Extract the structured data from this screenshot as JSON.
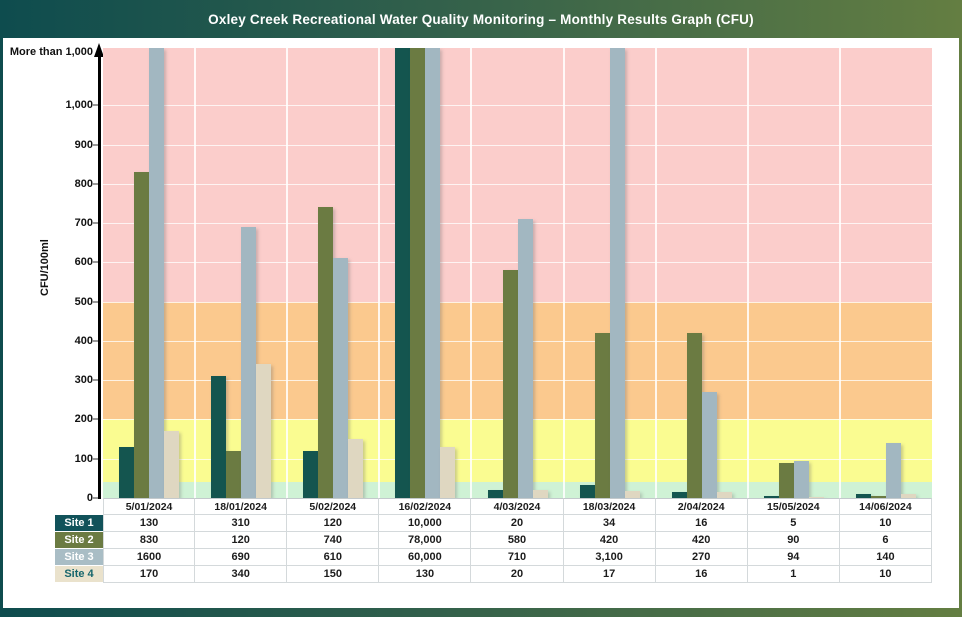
{
  "window": {
    "title": "Oxley Creek Recreational Water Quality Monitoring – Monthly Results Graph (CFU)",
    "header_gradient": [
      "#0e4c4e",
      "#647e42"
    ],
    "background": "#ffffff"
  },
  "chart_data": {
    "type": "bar",
    "title": "Oxley Creek Recreational Water Quality Monitoring – Monthly Results Graph (CFU)",
    "xlabel": "",
    "ylabel": "CFU/100ml",
    "ylim": [
      0,
      1146
    ],
    "grid": "white gridlines on colored band background",
    "legend_position": "table row headers at left of data table below chart",
    "y_axis": {
      "tick_values": [
        0,
        100,
        200,
        300,
        400,
        500,
        600,
        700,
        800,
        900,
        1000
      ],
      "tick_labels": [
        "0",
        "100",
        "200",
        "300",
        "400",
        "500",
        "600",
        "700",
        "800",
        "900",
        "1,000"
      ],
      "top_label": "More than 1,000",
      "note": "values above 1,000 are clipped at the top of the plot"
    },
    "categories": [
      "5/01/2024",
      "18/01/2024",
      "5/02/2024",
      "16/02/2024",
      "4/03/2024",
      "18/03/2024",
      "2/04/2024",
      "15/05/2024",
      "14/06/2024"
    ],
    "series": [
      {
        "name": "Site 1",
        "color": "#14554F",
        "legend_bg": "#11525A",
        "legend_text_color": "#ffffff",
        "values": [
          130,
          310,
          120,
          10000,
          20,
          34,
          16,
          5,
          10
        ],
        "display": [
          "130",
          "310",
          "120",
          "10,000",
          "20",
          "34",
          "16",
          "5",
          "10"
        ]
      },
      {
        "name": "Site 2",
        "color": "#6B7B42",
        "legend_bg": "#6B7B42",
        "legend_text_color": "#ffffff",
        "values": [
          830,
          120,
          740,
          78000,
          580,
          420,
          420,
          90,
          6
        ],
        "display": [
          "830",
          "120",
          "740",
          "78,000",
          "580",
          "420",
          "420",
          "90",
          "6"
        ]
      },
      {
        "name": "Site 3",
        "color": "#A2B7C1",
        "legend_bg": "#A9BDC5",
        "legend_text_color": "#ffffff",
        "values": [
          1600,
          690,
          610,
          60000,
          710,
          3100,
          270,
          94,
          140
        ],
        "display": [
          "1600",
          "690",
          "610",
          "60,000",
          "710",
          "3,100",
          "270",
          "94",
          "140"
        ]
      },
      {
        "name": "Site 4",
        "color": "#DFD7C1",
        "legend_bg": "#EAE2CC",
        "legend_text_color": "#16666C",
        "values": [
          170,
          340,
          150,
          130,
          20,
          17,
          16,
          1,
          10
        ],
        "display": [
          "170",
          "340",
          "150",
          "130",
          "20",
          "17",
          "16",
          "1",
          "10"
        ]
      }
    ],
    "zones": [
      {
        "name": "green-zone",
        "from": 0,
        "to": 40,
        "color": "#CFF2D5"
      },
      {
        "name": "yellow-zone",
        "from": 40,
        "to": 200,
        "color": "#FAFC91"
      },
      {
        "name": "orange-zone",
        "from": 200,
        "to": 500,
        "color": "#FBC98E"
      },
      {
        "name": "red-zone",
        "from": 500,
        "to": 1146,
        "color": "#FBCDCB"
      }
    ]
  }
}
